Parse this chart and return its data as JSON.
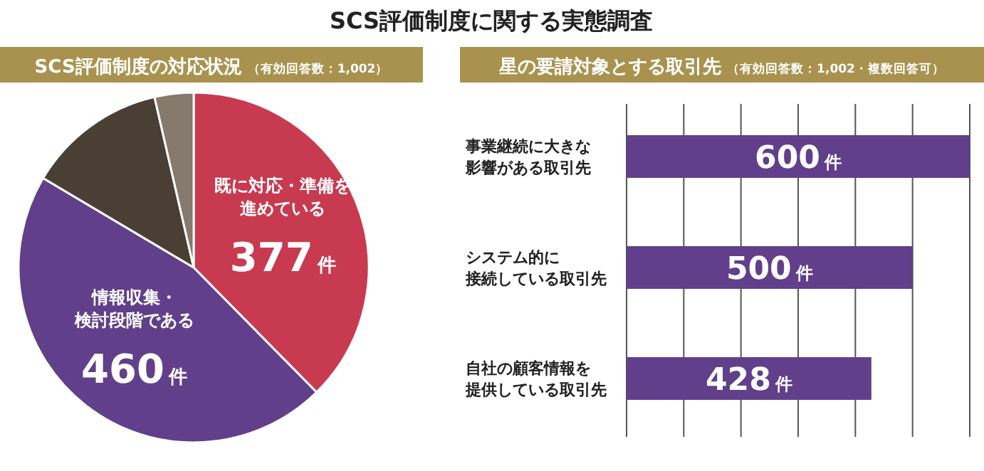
{
  "chart_data": [
    {
      "type": "other",
      "title": "SCS評価制度に関する実態調査"
    },
    {
      "type": "pie",
      "title": "SCS評価制度の対応状況",
      "subtitle": "（有効回答数：1,002）",
      "categories": [
        "既に対応・準備を進めている",
        "情報収集・検討段階である",
        null,
        null
      ],
      "values": [
        377,
        460,
        129,
        36
      ],
      "colors": [
        "#c83a50",
        "#613f8a",
        "#4a3f34",
        "#857a6c"
      ],
      "value_labels": [
        "377件",
        "460件",
        null,
        null
      ]
    },
    {
      "type": "bar",
      "orientation": "horizontal",
      "title": "星の要請対象とする取引先",
      "subtitle": "（有効回答数：1,002・複数回答可）",
      "categories": [
        "事業継続に大きな影響がある取引先",
        "システム的に接続している取引先",
        "自社の顧客情報を提供している取引先"
      ],
      "values": [
        600,
        500,
        428
      ],
      "color": "#613f8a",
      "value_labels": [
        "600件",
        "500件",
        "428件"
      ],
      "xlim": [
        0,
        600
      ],
      "xticks": [
        {
          "value": 0,
          "label": null
        },
        {
          "value": 100,
          "label": null
        },
        {
          "value": 200,
          "label": null
        },
        {
          "value": 300,
          "label": null
        },
        {
          "value": 400,
          "label": null
        },
        {
          "value": 500,
          "label": null
        },
        {
          "value": 600,
          "label": null
        }
      ],
      "grid": "x",
      "tick_labels": "y"
    }
  ]
}
